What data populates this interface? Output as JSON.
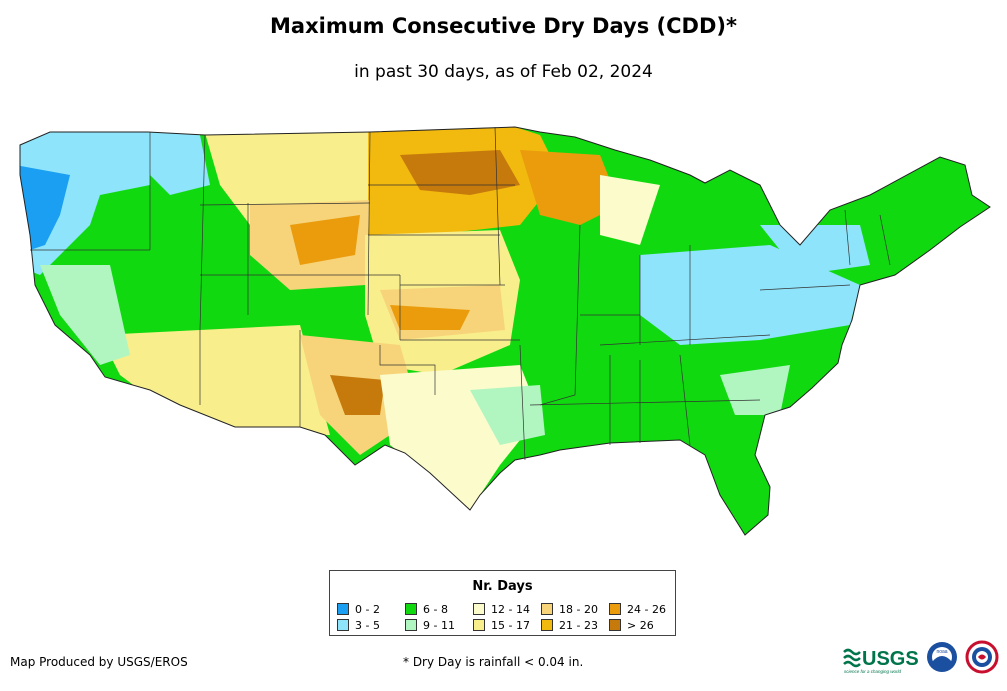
{
  "title": "Maximum Consecutive Dry Days (CDD)*",
  "subtitle": "in past 30 days, as of Feb 02, 2024",
  "legend": {
    "title": "Nr. Days",
    "items": [
      {
        "label": "0 - 2",
        "color": "#1a9ff2"
      },
      {
        "label": "3 - 5",
        "color": "#8ee4fa"
      },
      {
        "label": "6 - 8",
        "color": "#10d910"
      },
      {
        "label": "9 - 11",
        "color": "#b1f5c1"
      },
      {
        "label": "12 - 14",
        "color": "#fbfbcb"
      },
      {
        "label": "15 - 17",
        "color": "#f9ee8c"
      },
      {
        "label": "18 - 20",
        "color": "#f7d47a"
      },
      {
        "label": "21 - 23",
        "color": "#f2b90f"
      },
      {
        "label": "24 - 26",
        "color": "#ea9c0c"
      },
      {
        "label": "> 26",
        "color": "#c67a0c"
      }
    ]
  },
  "footer": {
    "credit": "Map Produced by USGS/EROS",
    "note": "* Dry Day is rainfall < 0.04 in."
  },
  "logos": {
    "usgs": "USGS",
    "usgs_tagline": "science for a changing world",
    "noaa": "noaa"
  }
}
